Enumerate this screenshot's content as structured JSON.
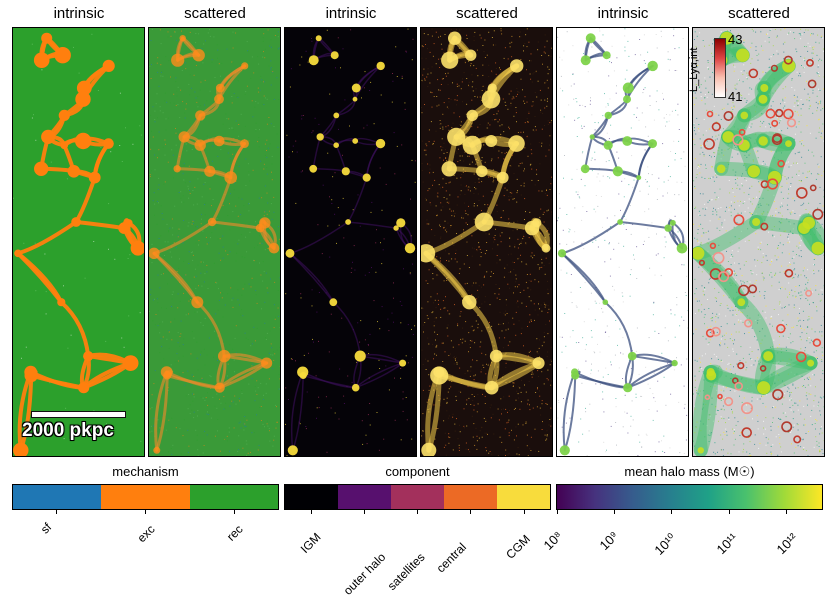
{
  "panels": [
    {
      "title": "intrinsic",
      "name": "mechanism-intrinsic"
    },
    {
      "title": "scattered",
      "name": "mechanism-scattered"
    },
    {
      "title": "intrinsic",
      "name": "component-intrinsic"
    },
    {
      "title": "scattered",
      "name": "component-scattered"
    },
    {
      "title": "intrinsic",
      "name": "halo-mass-intrinsic"
    },
    {
      "title": "scattered",
      "name": "halo-mass-scattered"
    }
  ],
  "scale_bar": {
    "label": "2000 pkpc"
  },
  "inset_colorbar": {
    "label": "L_Lyα,int",
    "top": "43",
    "bottom": "41"
  },
  "colorbars": {
    "mechanism": {
      "title": "mechanism",
      "labels": [
        "sf",
        "exc",
        "rec"
      ],
      "colors": [
        "#1f77b4",
        "#ff7f0e",
        "#2ca02c"
      ]
    },
    "component": {
      "title": "component",
      "labels": [
        "IGM",
        "outer halo",
        "satellites",
        "central",
        "CGM"
      ],
      "colors": [
        "#000004",
        "#57106e",
        "#a3305c",
        "#ec6a25",
        "#f8dc3c"
      ]
    },
    "halo_mass": {
      "title": "mean halo mass (M☉)",
      "labels": [
        "10⁸",
        "10⁹",
        "10¹⁰",
        "10¹¹",
        "10¹²"
      ]
    }
  },
  "colors": {
    "green": "#2ca02c",
    "orange": "#ff7f0e",
    "gold": "#f5c542",
    "black": "#050308"
  }
}
